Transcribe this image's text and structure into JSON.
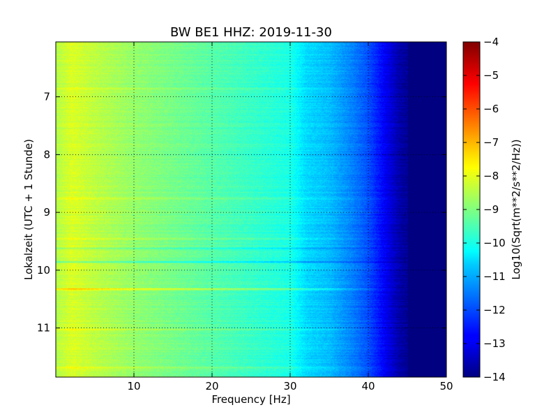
{
  "chart_data": {
    "type": "heatmap",
    "title": "BW BE1 HHZ: 2019-11-30",
    "xlabel": "Frequency [Hz]",
    "ylabel": "Lokalzeit (UTC + 1 Stunde)",
    "colorbar_label": "Log10(Sqrt(m**2/s**2/Hz))",
    "colormap": "jet",
    "xlim": [
      0,
      50
    ],
    "ylim": [
      11.85,
      6.05
    ],
    "y_inverted": true,
    "grid": true,
    "x_ticks": [
      10,
      20,
      30,
      40,
      50
    ],
    "x_tick_labels": [
      "10",
      "20",
      "30",
      "40",
      "50"
    ],
    "y_ticks": [
      7,
      8,
      9,
      10,
      11
    ],
    "y_tick_labels": [
      "7",
      "8",
      "9",
      "10",
      "11"
    ],
    "color_range": [
      -14,
      -4
    ],
    "colorbar_ticks": [
      -4,
      -5,
      -6,
      -7,
      -8,
      -9,
      -10,
      -11,
      -12,
      -13,
      -14
    ],
    "colorbar_tick_labels": [
      "−4",
      "−5",
      "−6",
      "−7",
      "−8",
      "−9",
      "−10",
      "−11",
      "−12",
      "−13",
      "−14"
    ],
    "spectrum_profile": {
      "frequency_hz": [
        0,
        2,
        5,
        10,
        15,
        20,
        25,
        30,
        32,
        35,
        38,
        40,
        42,
        44,
        46,
        50
      ],
      "level": [
        -8.5,
        -8.1,
        -8.4,
        -8.8,
        -9.1,
        -9.4,
        -9.7,
        -10.0,
        -10.6,
        -10.9,
        -11.5,
        -12.0,
        -12.8,
        -13.6,
        -14.0,
        -14.0
      ]
    },
    "highlight_bands": [
      {
        "time": 6.85,
        "offset": 0.4
      },
      {
        "time": 8.75,
        "offset": 0.3
      },
      {
        "time": 9.45,
        "offset": 0.4
      },
      {
        "time": 9.62,
        "offset": -0.6
      },
      {
        "time": 9.85,
        "offset": -0.9
      },
      {
        "time": 10.32,
        "offset": 1.2
      },
      {
        "time": 11.02,
        "offset": 0.5
      },
      {
        "time": 11.68,
        "offset": 0.4
      }
    ]
  }
}
